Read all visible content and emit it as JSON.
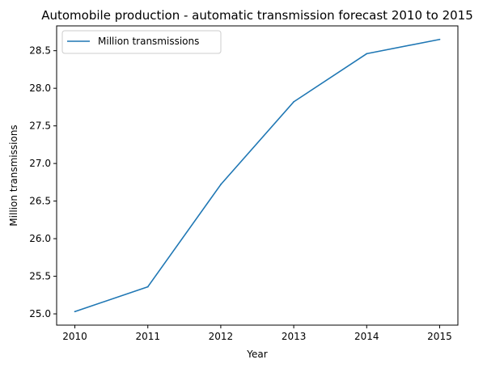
{
  "chart_data": {
    "type": "line",
    "title": "Automobile production - automatic transmission forecast 2010 to 2015",
    "xlabel": "Year",
    "ylabel": "Million transmissions",
    "x": [
      2010,
      2011,
      2012,
      2013,
      2014,
      2015
    ],
    "x_tick_labels": [
      "2010",
      "2011",
      "2012",
      "2013",
      "2014",
      "2015"
    ],
    "y_ticks": [
      25.0,
      25.5,
      26.0,
      26.5,
      27.0,
      27.5,
      28.0,
      28.5
    ],
    "y_tick_labels": [
      "25.0",
      "25.5",
      "26.0",
      "26.5",
      "27.0",
      "27.5",
      "28.0",
      "28.5"
    ],
    "xlim": [
      2009.75,
      2015.25
    ],
    "ylim": [
      24.85,
      28.83
    ],
    "grid": false,
    "legend_position": "upper-left",
    "series": [
      {
        "name": "Million transmissions",
        "color": "#1f77b4",
        "values": [
          25.03,
          25.36,
          26.72,
          27.82,
          28.46,
          28.65
        ]
      }
    ]
  }
}
